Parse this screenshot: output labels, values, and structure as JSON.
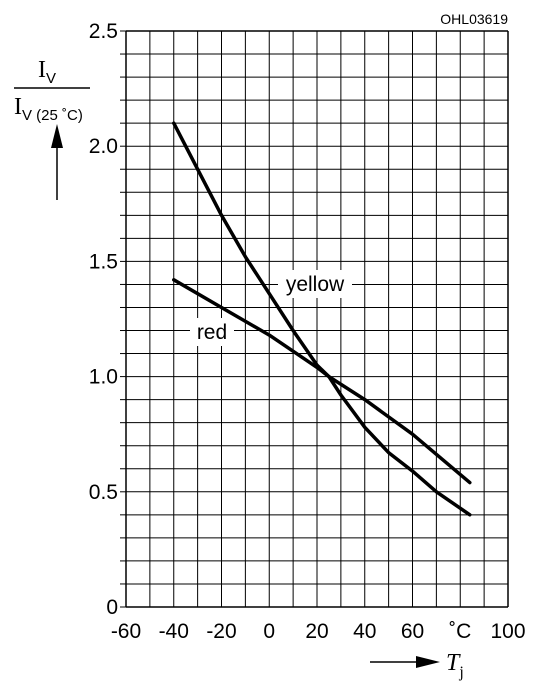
{
  "chart_data": {
    "type": "line",
    "identifier": "OHL03619",
    "ylabel": {
      "numerator": "I",
      "numerator_sub": "V",
      "denominator": "I",
      "denominator_sub": "V (25 ˚C)"
    },
    "xlabel": {
      "main": "T",
      "sub": "j"
    },
    "x_unit_label": "˚C",
    "xlim": [
      -60,
      100
    ],
    "ylim": [
      0,
      2.5
    ],
    "x_ticks": [
      "-60",
      "-40",
      "-20",
      "0",
      "20",
      "40",
      "60",
      "˚C",
      "100"
    ],
    "y_ticks": [
      "0",
      "0.5",
      "1.0",
      "1.5",
      "2.0",
      "2.5"
    ],
    "grid": true,
    "series": [
      {
        "name": "yellow",
        "points": [
          [
            -40,
            2.1
          ],
          [
            -30,
            1.9
          ],
          [
            -20,
            1.7
          ],
          [
            -10,
            1.52
          ],
          [
            0,
            1.36
          ],
          [
            10,
            1.2
          ],
          [
            20,
            1.05
          ],
          [
            25,
            1.0
          ],
          [
            30,
            0.92
          ],
          [
            40,
            0.78
          ],
          [
            50,
            0.67
          ],
          [
            60,
            0.59
          ],
          [
            70,
            0.5
          ],
          [
            84,
            0.4
          ]
        ]
      },
      {
        "name": "red",
        "points": [
          [
            -40,
            1.42
          ],
          [
            -20,
            1.3
          ],
          [
            0,
            1.18
          ],
          [
            20,
            1.04
          ],
          [
            25,
            1.0
          ],
          [
            40,
            0.9
          ],
          [
            60,
            0.75
          ],
          [
            84,
            0.54
          ]
        ]
      }
    ]
  }
}
